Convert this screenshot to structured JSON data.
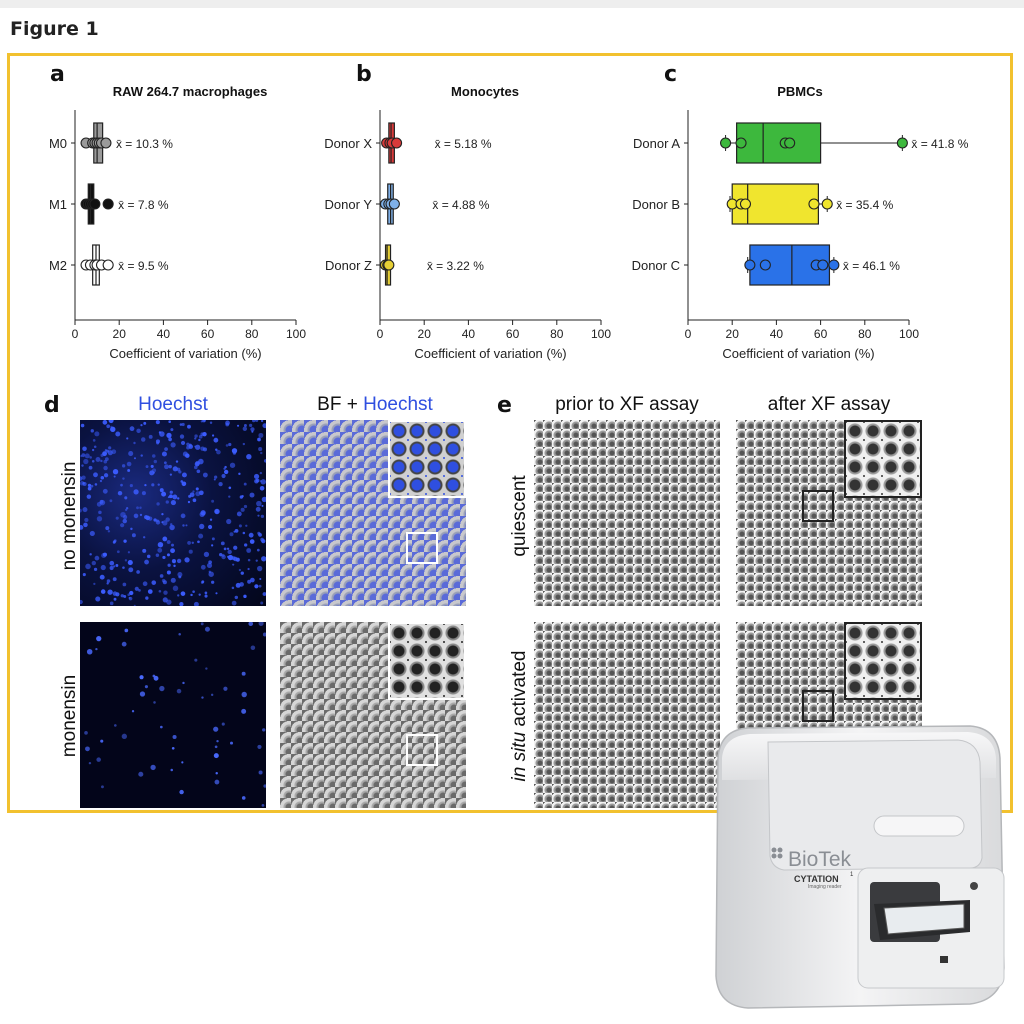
{
  "figure_title": "Figure 1",
  "panels": {
    "a": {
      "letter": "a",
      "title": "RAW 264.7 macrophages"
    },
    "b": {
      "letter": "b",
      "title": "Monocytes"
    },
    "c": {
      "letter": "c",
      "title": "PBMCs"
    },
    "d": {
      "letter": "d",
      "col1": "Hoechst",
      "col2_prefix": "BF + ",
      "col2_stain": "Hoechst",
      "row1": "no monensin",
      "row2": "monensin"
    },
    "e": {
      "letter": "e",
      "col1": "prior to XF assay",
      "col2": "after XF assay",
      "row1": "quiescent",
      "row2_italic": "in situ",
      "row2_rest": " activated"
    }
  },
  "colors": {
    "frame": "#f2c12e",
    "hoechst_blue": "#2f4fe0",
    "green": "#3db83d",
    "yellow": "#f0e52e",
    "blue": "#2a72e8",
    "red": "#d83a3a",
    "lightblue": "#7fb0e8",
    "gold": "#e6cf35"
  },
  "chart_data": [
    {
      "type": "box",
      "title": "RAW 264.7 macrophages",
      "xlabel": "Coefficient of variation (%)",
      "xlim": [
        0,
        100
      ],
      "xticks": [
        0,
        20,
        40,
        60,
        80,
        100
      ],
      "categories": [
        "M0",
        "M1",
        "M2"
      ],
      "series": [
        {
          "category": "M0",
          "mean_label": "x̄ = 10.3 %",
          "color": "#9a9a9a",
          "box": [
            8.5,
            10,
            12.5
          ],
          "points": [
            5,
            8,
            9,
            10,
            11,
            12,
            14
          ]
        },
        {
          "category": "M1",
          "mean_label": "x̄ = 7.8 %",
          "color": "#111111",
          "box": [
            6,
            7,
            8.5
          ],
          "points": [
            5,
            6,
            7,
            8,
            9,
            15
          ]
        },
        {
          "category": "M2",
          "mean_label": "x̄ = 9.5 %",
          "color": "#ffffff",
          "box": [
            8,
            9.5,
            11
          ],
          "points": [
            5,
            7,
            9,
            10,
            12,
            15
          ]
        }
      ]
    },
    {
      "type": "box",
      "title": "Monocytes",
      "xlabel": "Coefficient of variation (%)",
      "xlim": [
        0,
        100
      ],
      "xticks": [
        0,
        20,
        40,
        60,
        80,
        100
      ],
      "categories": [
        "Donor X",
        "Donor Y",
        "Donor Z"
      ],
      "series": [
        {
          "category": "Donor X",
          "mean_label": "x̄ = 5.18 %",
          "color": "#d83a3a",
          "box": [
            4,
            5,
            6.5
          ],
          "points": [
            3,
            4.5,
            5.5,
            7.5
          ]
        },
        {
          "category": "Donor Y",
          "mean_label": "x̄ = 4.88 %",
          "color": "#7fb0e8",
          "box": [
            3.5,
            4.8,
            6
          ],
          "points": [
            2.5,
            4,
            5,
            6.5
          ]
        },
        {
          "category": "Donor Z",
          "mean_label": "x̄ = 3.22 %",
          "color": "#e6cf35",
          "box": [
            2.5,
            3.2,
            4
          ],
          "points": [
            2.5,
            3.5,
            4
          ]
        }
      ]
    },
    {
      "type": "box",
      "title": "PBMCs",
      "xlabel": "Coefficient of variation (%)",
      "xlim": [
        0,
        100
      ],
      "xticks": [
        0,
        20,
        40,
        60,
        80,
        100
      ],
      "categories": [
        "Donor A",
        "Donor B",
        "Donor C"
      ],
      "series": [
        {
          "category": "Donor A",
          "mean_label": "x̄ = 41.8 %",
          "color": "#3db83d",
          "box": [
            22,
            34,
            60
          ],
          "whisker": [
            17,
            97
          ],
          "points": [
            17,
            24,
            44,
            46,
            97
          ]
        },
        {
          "category": "Donor B",
          "mean_label": "x̄ = 35.4 %",
          "color": "#f0e52e",
          "box": [
            20,
            27,
            59
          ],
          "whisker": [
            19,
            63
          ],
          "points": [
            20,
            24,
            26,
            57,
            63
          ]
        },
        {
          "category": "Donor C",
          "mean_label": "x̄ = 46.1 %",
          "color": "#2a72e8",
          "box": [
            28,
            47,
            64
          ],
          "whisker": [
            27,
            66
          ],
          "points": [
            28,
            35,
            58,
            61,
            66
          ]
        }
      ]
    }
  ],
  "device": {
    "brand": "BioTek",
    "model": "CYTATION",
    "model_sup": "1",
    "model_sub": "Imaging reader"
  }
}
